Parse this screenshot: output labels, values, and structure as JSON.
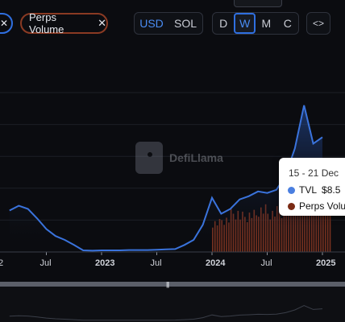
{
  "filters": {
    "tvl_remove": "✕",
    "perps_label": "Perps Volume",
    "perps_remove": "✕"
  },
  "currency": {
    "options": [
      "USD",
      "SOL"
    ],
    "active": "USD"
  },
  "period": {
    "options": [
      "D",
      "W",
      "M",
      "C"
    ],
    "active": "W"
  },
  "embed_label": "<>",
  "watermark": "DefiLlama",
  "tooltip": {
    "title": "15 - 21 Dec",
    "rows": [
      {
        "label": "TVL",
        "value": "$8.5",
        "color": "#4a7fe0"
      },
      {
        "label": "Perps Volu",
        "value": "",
        "color": "#7a2a14"
      }
    ]
  },
  "colors": {
    "tvl": "#3a73dc",
    "perps": "#7a3220",
    "grid": "#1c1f26"
  },
  "chart_data": {
    "type": "line",
    "x_tick_labels": [
      "2",
      "Jul",
      "2023",
      "Jul",
      "2024",
      "Jul",
      "2025"
    ],
    "series": [
      {
        "name": "TVL",
        "x": [
          "2022-03",
          "2022-04",
          "2022-05",
          "2022-06",
          "2022-07",
          "2022-08",
          "2022-09",
          "2022-10",
          "2022-11",
          "2022-12",
          "2023-01",
          "2023-02",
          "2023-03",
          "2023-04",
          "2023-05",
          "2023-06",
          "2023-07",
          "2023-08",
          "2023-09",
          "2023-10",
          "2023-11",
          "2023-12",
          "2024-01",
          "2024-02",
          "2024-03",
          "2024-04",
          "2024-05",
          "2024-06",
          "2024-07",
          "2024-08",
          "2024-09",
          "2024-10",
          "2024-11",
          "2024-12",
          "2025-01"
        ],
        "values": [
          1.3,
          1.45,
          1.35,
          1.05,
          0.72,
          0.5,
          0.38,
          0.22,
          0.05,
          0.04,
          0.05,
          0.05,
          0.05,
          0.06,
          0.06,
          0.06,
          0.07,
          0.08,
          0.09,
          0.22,
          0.38,
          0.85,
          1.7,
          1.2,
          1.35,
          1.65,
          1.75,
          1.9,
          1.85,
          1.95,
          2.4,
          3.25,
          4.6,
          3.4,
          3.6
        ]
      },
      {
        "name": "Perps Volume",
        "x": [
          "2024-01",
          "2024-02",
          "2024-03",
          "2024-04",
          "2024-05",
          "2024-06",
          "2024-07",
          "2024-08",
          "2024-09",
          "2024-10",
          "2024-11",
          "2024-12",
          "2025-01"
        ],
        "values": [
          0.9,
          1.0,
          1.2,
          1.1,
          1.15,
          1.3,
          1.2,
          1.25,
          1.35,
          1.45,
          1.55,
          1.5,
          1.6
        ]
      }
    ]
  }
}
